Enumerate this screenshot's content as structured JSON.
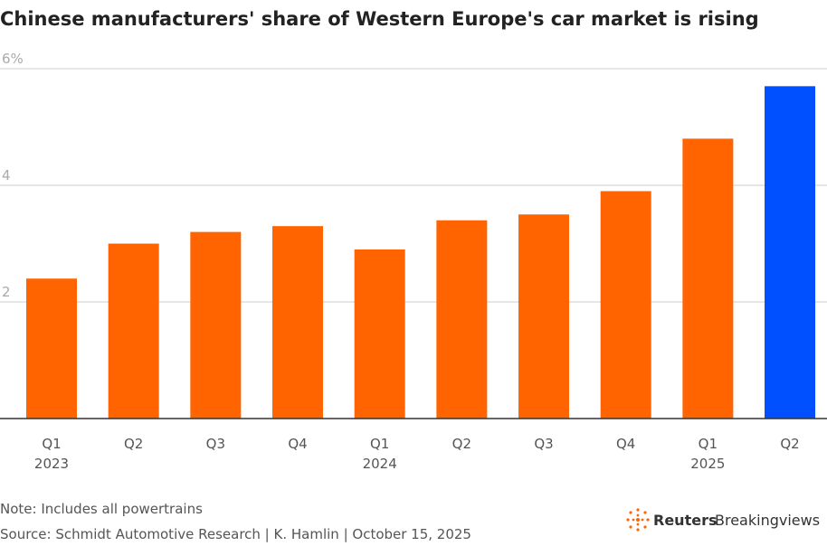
{
  "chart_data": {
    "type": "bar",
    "title": "Chinese manufacturers' share of Western Europe's car market is rising",
    "categories": [
      "Q1",
      "Q2",
      "Q3",
      "Q4",
      "Q1",
      "Q2",
      "Q3",
      "Q4",
      "Q1",
      "Q2"
    ],
    "year_labels": [
      "2023",
      null,
      null,
      null,
      "2024",
      null,
      null,
      null,
      "2025",
      null
    ],
    "values": [
      2.4,
      3.0,
      3.2,
      3.3,
      2.9,
      3.4,
      3.5,
      3.9,
      4.8,
      5.7
    ],
    "colors": [
      "#ff6400",
      "#ff6400",
      "#ff6400",
      "#ff6400",
      "#ff6400",
      "#ff6400",
      "#ff6400",
      "#ff6400",
      "#ff6400",
      "#0050ff"
    ],
    "ylim": [
      0,
      6
    ],
    "yticks": [
      2,
      4,
      {
        "value": 6,
        "label": "6%"
      }
    ],
    "grid": true,
    "note": "Note: Includes all powertrains",
    "source": "Source: Schmidt Automotive Research | K. Hamlin | October 15, 2025"
  },
  "logo": {
    "brand": "Reuters",
    "product": "Breakingviews"
  }
}
